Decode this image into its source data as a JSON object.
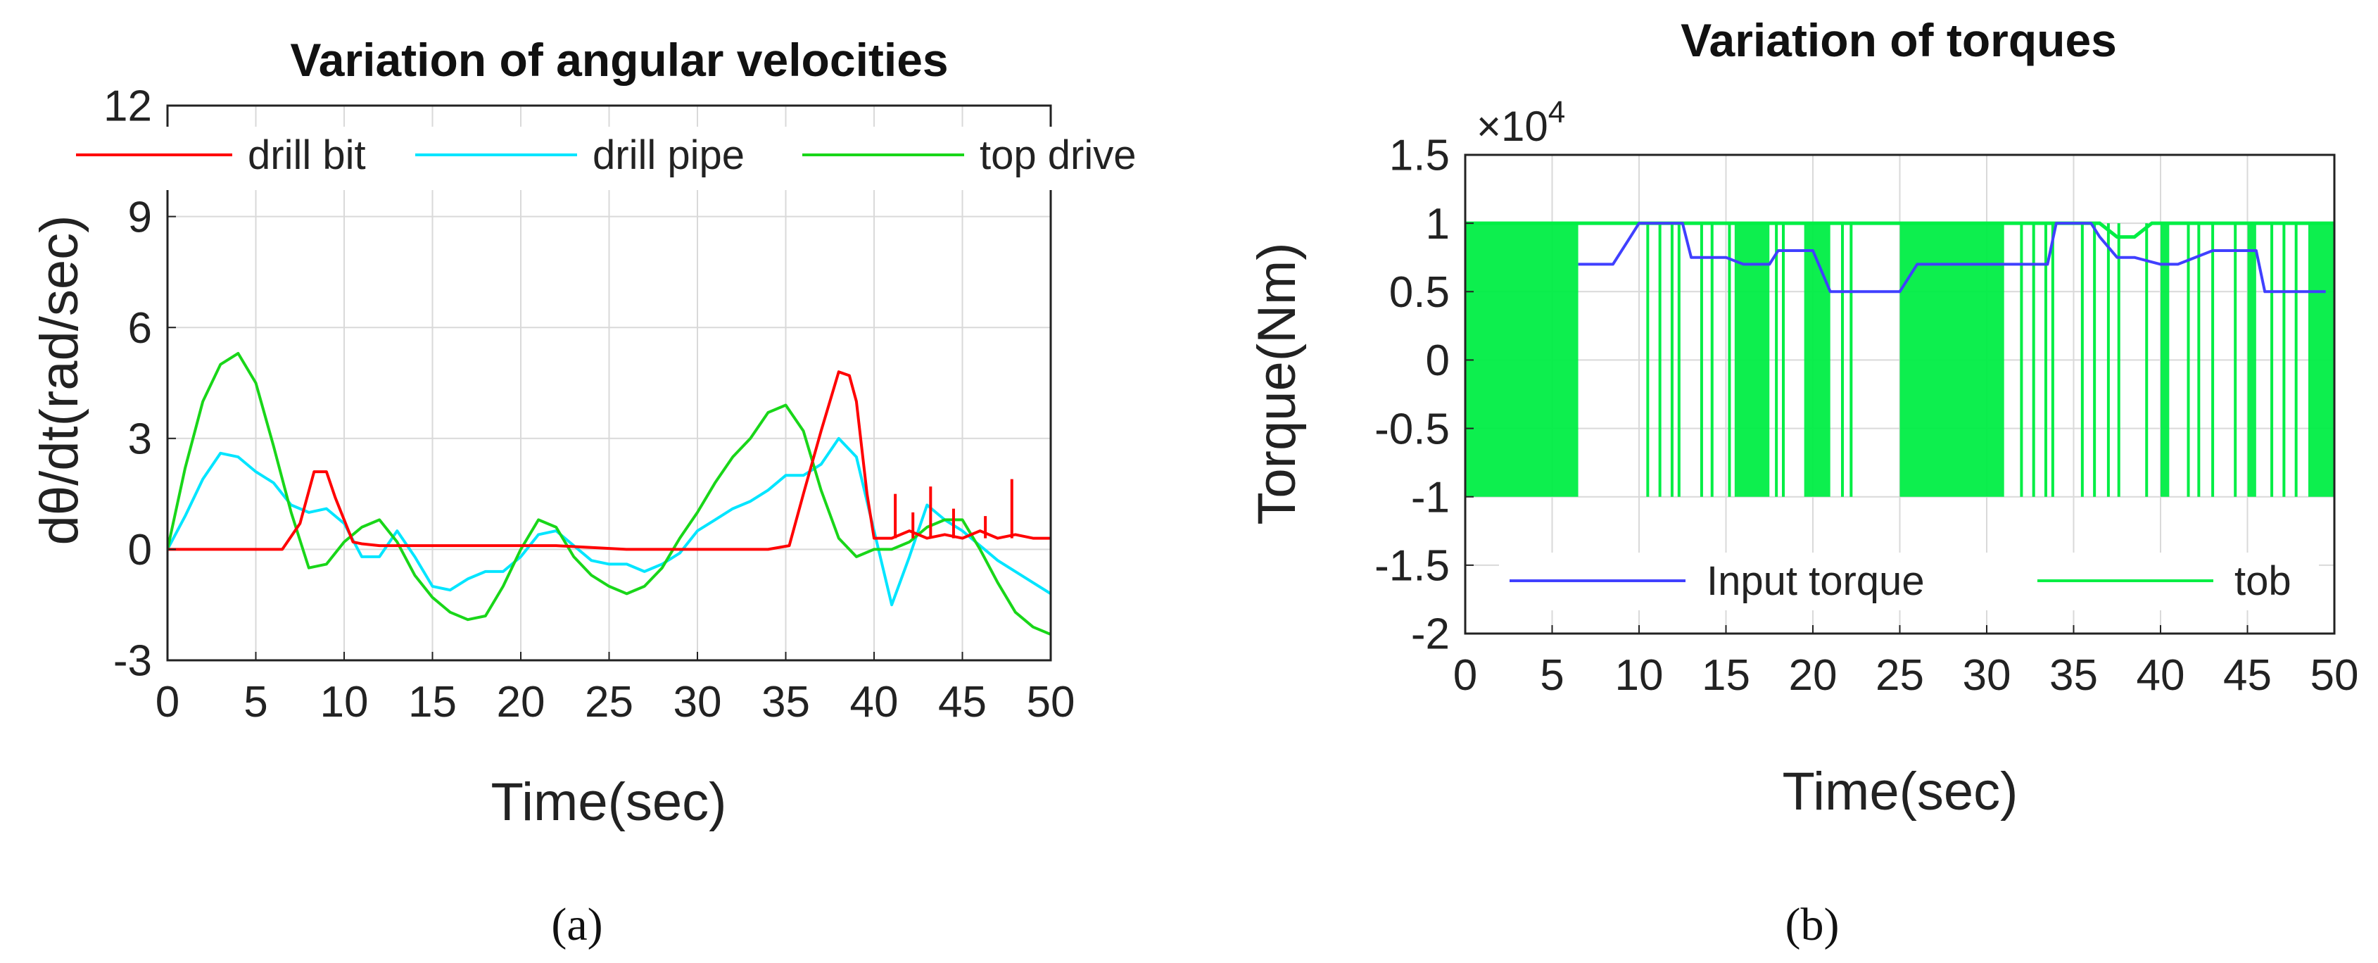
{
  "chart_data": [
    {
      "id": "a",
      "type": "line",
      "title": "Variation of angular velocities",
      "xlabel": "Time(sec)",
      "ylabel": "dθ/dt(rad/sec)",
      "caption": "(a)",
      "xlim": [
        0,
        50
      ],
      "ylim": [
        -3,
        12
      ],
      "xticks": [
        0,
        5,
        10,
        15,
        20,
        25,
        30,
        35,
        40,
        45,
        50
      ],
      "yticks": [
        -3,
        0,
        3,
        6,
        9,
        12
      ],
      "xtick_labels": [
        "0",
        "5",
        "10",
        "15",
        "20",
        "25",
        "30",
        "35",
        "40",
        "45",
        "50"
      ],
      "ytick_labels": [
        "-3",
        "0",
        "3",
        "6",
        "9",
        "12"
      ],
      "grid": true,
      "legend_position": "top",
      "series": [
        {
          "name": "drill bit",
          "color": "#ff0000",
          "x": [
            0,
            6.5,
            7.5,
            8.3,
            9,
            9.5,
            10.5,
            11,
            12,
            14,
            16,
            18,
            20,
            22,
            24,
            26,
            28,
            30,
            32,
            34,
            35.2,
            36,
            37,
            38,
            38.6,
            39,
            39.6,
            40,
            41,
            42,
            43,
            44,
            45,
            46,
            47,
            48,
            49,
            50
          ],
          "y": [
            0,
            0,
            0.7,
            2.1,
            2.1,
            1.4,
            0.2,
            0.15,
            0.1,
            0.1,
            0.1,
            0.1,
            0.1,
            0.1,
            0.05,
            0,
            0,
            0,
            0,
            0,
            0.1,
            1.5,
            3.2,
            4.8,
            4.7,
            4.0,
            1.5,
            0.3,
            0.3,
            0.5,
            0.3,
            0.4,
            0.3,
            0.5,
            0.3,
            0.4,
            0.3,
            0.3
          ],
          "spikes": [
            {
              "x": 41.2,
              "y": 1.5
            },
            {
              "x": 42.2,
              "y": 1.0
            },
            {
              "x": 43.2,
              "y": 1.7
            },
            {
              "x": 44.5,
              "y": 1.1
            },
            {
              "x": 46.3,
              "y": 0.9
            },
            {
              "x": 47.8,
              "y": 1.9
            }
          ]
        },
        {
          "name": "drill pipe",
          "color": "#00e5ff",
          "x": [
            0,
            1,
            2,
            3,
            4,
            5,
            6,
            7,
            8,
            9,
            10,
            11,
            12,
            13,
            14,
            15,
            16,
            17,
            18,
            19,
            20,
            21,
            22,
            23,
            24,
            25,
            26,
            27,
            28,
            29,
            30,
            31,
            32,
            33,
            34,
            35,
            36,
            37,
            38,
            39,
            40,
            41,
            42,
            43,
            44,
            45,
            46,
            47,
            48,
            49,
            50
          ],
          "y": [
            0,
            0.9,
            1.9,
            2.6,
            2.5,
            2.1,
            1.8,
            1.2,
            1.0,
            1.1,
            0.7,
            -0.2,
            -0.2,
            0.5,
            -0.2,
            -1.0,
            -1.1,
            -0.8,
            -0.6,
            -0.6,
            -0.2,
            0.4,
            0.5,
            0.1,
            -0.3,
            -0.4,
            -0.4,
            -0.6,
            -0.4,
            -0.1,
            0.5,
            0.8,
            1.1,
            1.3,
            1.6,
            2.0,
            2.0,
            2.3,
            3.0,
            2.5,
            0.5,
            -1.5,
            -0.2,
            1.2,
            0.8,
            0.5,
            0.1,
            -0.3,
            -0.6,
            -0.9,
            -1.2
          ]
        },
        {
          "name": "top drive",
          "color": "#19d619",
          "x": [
            0,
            1,
            2,
            3,
            4,
            5,
            6,
            7,
            8,
            9,
            10,
            11,
            12,
            13,
            14,
            15,
            16,
            17,
            18,
            19,
            20,
            21,
            22,
            23,
            24,
            25,
            26,
            27,
            28,
            29,
            30,
            31,
            32,
            33,
            34,
            35,
            36,
            37,
            38,
            39,
            40,
            41,
            42,
            43,
            44,
            45,
            46,
            47,
            48,
            49,
            50
          ],
          "y": [
            0,
            2.2,
            4.0,
            5.0,
            5.3,
            4.5,
            2.8,
            1.0,
            -0.5,
            -0.4,
            0.2,
            0.6,
            0.8,
            0.2,
            -0.7,
            -1.3,
            -1.7,
            -1.9,
            -1.8,
            -1.0,
            0.0,
            0.8,
            0.6,
            -0.2,
            -0.7,
            -1.0,
            -1.2,
            -1.0,
            -0.5,
            0.3,
            1.0,
            1.8,
            2.5,
            3.0,
            3.7,
            3.9,
            3.2,
            1.6,
            0.3,
            -0.2,
            0.0,
            0.0,
            0.2,
            0.6,
            0.8,
            0.8,
            0.0,
            -0.9,
            -1.7,
            -2.1,
            -2.3
          ]
        }
      ]
    },
    {
      "id": "b",
      "type": "line",
      "title": "Variation of torques",
      "xlabel": "Time(sec)",
      "ylabel": "Torque(Nm)",
      "caption": "(b)",
      "multiplier_label": "×10",
      "multiplier_exponent": "4",
      "xlim": [
        0,
        50
      ],
      "ylim": [
        -2,
        1.5
      ],
      "xticks": [
        0,
        5,
        10,
        15,
        20,
        25,
        30,
        35,
        40,
        45,
        50
      ],
      "yticks": [
        -2,
        -1.5,
        -1,
        -0.5,
        0,
        0.5,
        1,
        1.5
      ],
      "xtick_labels": [
        "0",
        "5",
        "10",
        "15",
        "20",
        "25",
        "30",
        "35",
        "40",
        "45",
        "50"
      ],
      "ytick_labels": [
        "-2",
        "-1.5",
        "-1",
        "-0.5",
        "0",
        "0.5",
        "1",
        "1.5"
      ],
      "grid": true,
      "legend_position": "bottom",
      "series": [
        {
          "name": "Input torque",
          "color": "#4040ff",
          "x": [
            6.5,
            8.5,
            9.5,
            10,
            12.5,
            13,
            15,
            16,
            17.5,
            18,
            20,
            21,
            25,
            26,
            31,
            32,
            33.5,
            34,
            35.5,
            36,
            36.5,
            37.5,
            38.5,
            40,
            41,
            43,
            45.5,
            46,
            49.5
          ],
          "y": [
            0.7,
            0.7,
            0.9,
            1.0,
            1.0,
            0.75,
            0.75,
            0.7,
            0.7,
            0.8,
            0.8,
            0.5,
            0.5,
            0.7,
            0.7,
            0.7,
            0.7,
            1.0,
            1.0,
            1.0,
            0.9,
            0.75,
            0.75,
            0.7,
            0.7,
            0.8,
            0.8,
            0.5,
            0.5
          ]
        },
        {
          "name": "tob",
          "color": "#00ee44",
          "upper": 1.0,
          "lower": -1.0,
          "dense_bands": [
            [
              0,
              6.5
            ],
            [
              15.5,
              17.5
            ],
            [
              19.5,
              21
            ],
            [
              25,
              31
            ],
            [
              40,
              40.5
            ],
            [
              45,
              45.5
            ],
            [
              48.5,
              50
            ]
          ],
          "sparse_lines": [
            10.5,
            11.2,
            11.9,
            12.3,
            13.6,
            14.2,
            15.2,
            17.9,
            18.3,
            21.7,
            22.2,
            32.0,
            32.7,
            33.4,
            33.8,
            35.5,
            36.2,
            37.0,
            37.6,
            39.2,
            41.6,
            42.2,
            43.0,
            44.3,
            46.4,
            47.1,
            47.8
          ]
        }
      ]
    }
  ]
}
